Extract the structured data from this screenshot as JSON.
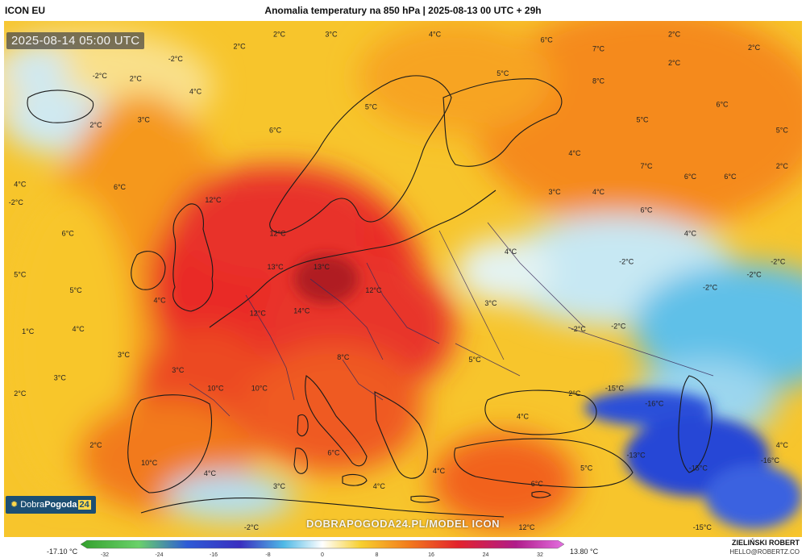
{
  "header": {
    "model": "ICON EU",
    "title": "Anomalia temperatury na 850 hPa | 2025-08-13 00 UTC + 29h"
  },
  "valid_time": "2025-08-14 05:00 UTC",
  "brand": {
    "part1": "Dobra",
    "part2": "Pogoda",
    "part3": "24"
  },
  "watermark": "DOBRAPOGODA24.PL/MODEL ICON",
  "footer": {
    "min_label": "-17.10 °C",
    "max_label": "13.80 °C",
    "author": "ZIELIŃSKI ROBERT",
    "email": "HELLO@ROBERTZ.CO",
    "ticks": [
      "-32",
      "-24",
      "-16",
      "-8",
      "0",
      "8",
      "16",
      "24",
      "32"
    ]
  },
  "map_labels": [
    {
      "text": "2°C",
      "lon": 0.345,
      "lat": 0.024
    },
    {
      "text": "3°C",
      "lon": 0.41,
      "lat": 0.024
    },
    {
      "text": "4°C",
      "lon": 0.54,
      "lat": 0.024
    },
    {
      "text": "2°C",
      "lon": 0.84,
      "lat": 0.024
    },
    {
      "text": "2°C",
      "lon": 0.295,
      "lat": 0.048
    },
    {
      "text": "6°C",
      "lon": 0.68,
      "lat": 0.035
    },
    {
      "text": "7°C",
      "lon": 0.745,
      "lat": 0.052
    },
    {
      "text": "2°C",
      "lon": 0.94,
      "lat": 0.05
    },
    {
      "text": "-2°C",
      "lon": 0.215,
      "lat": 0.072
    },
    {
      "text": "2°C",
      "lon": 0.84,
      "lat": 0.08
    },
    {
      "text": "-2°C",
      "lon": 0.12,
      "lat": 0.105
    },
    {
      "text": "2°C",
      "lon": 0.165,
      "lat": 0.11
    },
    {
      "text": "5°C",
      "lon": 0.625,
      "lat": 0.1
    },
    {
      "text": "8°C",
      "lon": 0.745,
      "lat": 0.115
    },
    {
      "text": "4°C",
      "lon": 0.24,
      "lat": 0.135
    },
    {
      "text": "6°C",
      "lon": 0.9,
      "lat": 0.16
    },
    {
      "text": "5°C",
      "lon": 0.46,
      "lat": 0.165
    },
    {
      "text": "3°C",
      "lon": 0.175,
      "lat": 0.19
    },
    {
      "text": "2°C",
      "lon": 0.115,
      "lat": 0.2
    },
    {
      "text": "6°C",
      "lon": 0.34,
      "lat": 0.21
    },
    {
      "text": "5°C",
      "lon": 0.8,
      "lat": 0.19
    },
    {
      "text": "5°C",
      "lon": 0.975,
      "lat": 0.21
    },
    {
      "text": "4°C",
      "lon": 0.715,
      "lat": 0.255
    },
    {
      "text": "7°C",
      "lon": 0.805,
      "lat": 0.28
    },
    {
      "text": "6°C",
      "lon": 0.86,
      "lat": 0.3
    },
    {
      "text": "6°C",
      "lon": 0.91,
      "lat": 0.3
    },
    {
      "text": "2°C",
      "lon": 0.975,
      "lat": 0.28
    },
    {
      "text": "4°C",
      "lon": 0.02,
      "lat": 0.315
    },
    {
      "text": "6°C",
      "lon": 0.145,
      "lat": 0.32
    },
    {
      "text": "3°C",
      "lon": 0.69,
      "lat": 0.33
    },
    {
      "text": "4°C",
      "lon": 0.745,
      "lat": 0.33
    },
    {
      "text": "-2°C",
      "lon": 0.015,
      "lat": 0.35
    },
    {
      "text": "12°C",
      "lon": 0.262,
      "lat": 0.345
    },
    {
      "text": "6°C",
      "lon": 0.805,
      "lat": 0.365
    },
    {
      "text": "6°C",
      "lon": 0.08,
      "lat": 0.41
    },
    {
      "text": "12°C",
      "lon": 0.343,
      "lat": 0.41
    },
    {
      "text": "4°C",
      "lon": 0.86,
      "lat": 0.41
    },
    {
      "text": "4°C",
      "lon": 0.635,
      "lat": 0.445
    },
    {
      "text": "5°C",
      "lon": 0.02,
      "lat": 0.49
    },
    {
      "text": "13°C",
      "lon": 0.34,
      "lat": 0.475
    },
    {
      "text": "13°C",
      "lon": 0.398,
      "lat": 0.475
    },
    {
      "text": "-2°C",
      "lon": 0.78,
      "lat": 0.465
    },
    {
      "text": "-2°C",
      "lon": 0.97,
      "lat": 0.465
    },
    {
      "text": "-2°C",
      "lon": 0.94,
      "lat": 0.49
    },
    {
      "text": "5°C",
      "lon": 0.09,
      "lat": 0.52
    },
    {
      "text": "12°C",
      "lon": 0.463,
      "lat": 0.52
    },
    {
      "text": "-2°C",
      "lon": 0.885,
      "lat": 0.515
    },
    {
      "text": "4°C",
      "lon": 0.195,
      "lat": 0.54
    },
    {
      "text": "3°C",
      "lon": 0.61,
      "lat": 0.545
    },
    {
      "text": "12°C",
      "lon": 0.318,
      "lat": 0.565
    },
    {
      "text": "14°C",
      "lon": 0.373,
      "lat": 0.56
    },
    {
      "text": "1°C",
      "lon": 0.03,
      "lat": 0.6
    },
    {
      "text": "4°C",
      "lon": 0.093,
      "lat": 0.595
    },
    {
      "text": "-2°C",
      "lon": 0.72,
      "lat": 0.595
    },
    {
      "text": "-2°C",
      "lon": 0.77,
      "lat": 0.59
    },
    {
      "text": "3°C",
      "lon": 0.15,
      "lat": 0.645
    },
    {
      "text": "8°C",
      "lon": 0.425,
      "lat": 0.65
    },
    {
      "text": "3°C",
      "lon": 0.218,
      "lat": 0.675
    },
    {
      "text": "3°C",
      "lon": 0.07,
      "lat": 0.69
    },
    {
      "text": "5°C",
      "lon": 0.59,
      "lat": 0.655
    },
    {
      "text": "10°C",
      "lon": 0.265,
      "lat": 0.71
    },
    {
      "text": "10°C",
      "lon": 0.32,
      "lat": 0.71
    },
    {
      "text": "-15°C",
      "lon": 0.765,
      "lat": 0.71
    },
    {
      "text": "-16°C",
      "lon": 0.815,
      "lat": 0.74
    },
    {
      "text": "2°C",
      "lon": 0.02,
      "lat": 0.72
    },
    {
      "text": "2°C",
      "lon": 0.715,
      "lat": 0.72
    },
    {
      "text": "4°C",
      "lon": 0.65,
      "lat": 0.765
    },
    {
      "text": "2°C",
      "lon": 0.115,
      "lat": 0.82
    },
    {
      "text": "4°C",
      "lon": 0.975,
      "lat": 0.82
    },
    {
      "text": "6°C",
      "lon": 0.413,
      "lat": 0.835
    },
    {
      "text": "10°C",
      "lon": 0.182,
      "lat": 0.855
    },
    {
      "text": "-13°C",
      "lon": 0.792,
      "lat": 0.84
    },
    {
      "text": "-15°C",
      "lon": 0.87,
      "lat": 0.865
    },
    {
      "text": "4°C",
      "lon": 0.258,
      "lat": 0.875
    },
    {
      "text": "4°C",
      "lon": 0.545,
      "lat": 0.87
    },
    {
      "text": "5°C",
      "lon": 0.73,
      "lat": 0.865
    },
    {
      "text": "3°C",
      "lon": 0.345,
      "lat": 0.9
    },
    {
      "text": "4°C",
      "lon": 0.47,
      "lat": 0.9
    },
    {
      "text": "6°C",
      "lon": 0.668,
      "lat": 0.895
    },
    {
      "text": "-16°C",
      "lon": 0.96,
      "lat": 0.85
    },
    {
      "text": "-2°C",
      "lon": 0.31,
      "lat": 0.98
    },
    {
      "text": "12°C",
      "lon": 0.655,
      "lat": 0.98
    },
    {
      "text": "-15°C",
      "lon": 0.875,
      "lat": 0.98
    }
  ],
  "colors": {
    "hot": "#e3232c",
    "warm": "#f25a1a",
    "mild": "#f79a1d",
    "yellow": "#f7cf2e",
    "pale": "#fbe9a0",
    "cool": "#bfe6f3",
    "cold": "#4fb9e6",
    "frost": "#2547d6"
  }
}
